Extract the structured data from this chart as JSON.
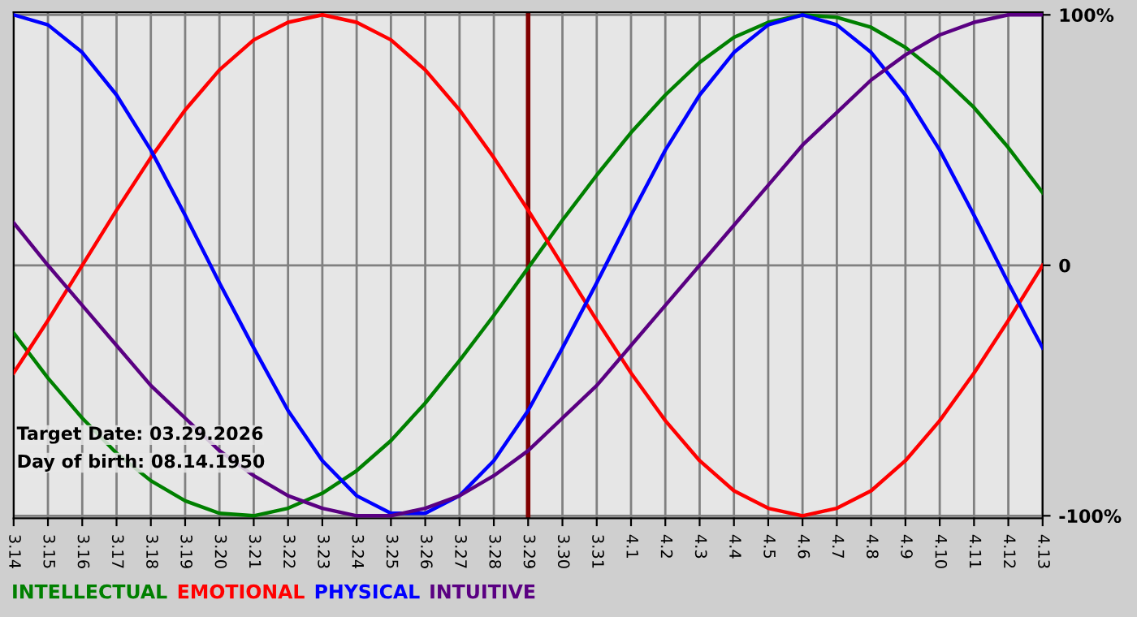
{
  "chart_data": {
    "type": "line",
    "categories": [
      "3.14",
      "3.15",
      "3.16",
      "3.17",
      "3.18",
      "3.19",
      "3.20",
      "3.21",
      "3.22",
      "3.23",
      "3.24",
      "3.25",
      "3.26",
      "3.27",
      "3.28",
      "3.29",
      "3.30",
      "3.31",
      "4.1",
      "4.2",
      "4.3",
      "4.4",
      "4.5",
      "4.6",
      "4.7",
      "4.8",
      "4.9",
      "4.10",
      "4.11",
      "4.12",
      "4.13"
    ],
    "series": [
      {
        "name": "INTELLECTUAL",
        "color": "#008000",
        "values": [
          -27,
          -45,
          -61,
          -75,
          -86,
          -94,
          -99,
          -100,
          -97,
          -91,
          -82,
          -70,
          -55,
          -38,
          -20,
          -1,
          18,
          36,
          53,
          68,
          81,
          91,
          97,
          100,
          99,
          95,
          87,
          76,
          63,
          47,
          29
        ]
      },
      {
        "name": "EMOTIONAL",
        "color": "#ff0000",
        "values": [
          -43,
          -22,
          0,
          22,
          43,
          62,
          78,
          90,
          97,
          100,
          97,
          90,
          78,
          62,
          43,
          22,
          0,
          -22,
          -43,
          -62,
          -78,
          -90,
          -97,
          -100,
          -97,
          -90,
          -78,
          -62,
          -43,
          -22,
          0
        ]
      },
      {
        "name": "PHYSICAL",
        "color": "#0000ff",
        "values": [
          100,
          96,
          85,
          68,
          46,
          20,
          -7,
          -33,
          -58,
          -78,
          -92,
          -99,
          -99,
          -92,
          -78,
          -58,
          -33,
          -7,
          20,
          46,
          68,
          85,
          96,
          100,
          96,
          85,
          68,
          46,
          20,
          -7,
          -33
        ]
      },
      {
        "name": "INTUITIVE",
        "color": "#5a0082",
        "values": [
          17,
          0,
          -16,
          -32,
          -48,
          -61,
          -74,
          -84,
          -92,
          -97,
          -100,
          -100,
          -97,
          -92,
          -84,
          -74,
          -61,
          -48,
          -32,
          -16,
          0,
          16,
          32,
          48,
          61,
          74,
          84,
          92,
          97,
          100,
          100
        ]
      }
    ],
    "ylim": [
      -101,
      101
    ],
    "yticks": [
      {
        "value": 100,
        "label": "100%"
      },
      0,
      {
        "value": -100,
        "label": "-100%"
      }
    ],
    "grid": true,
    "ref_lines": [
      {
        "axis": "x",
        "value": "3.29",
        "color": "#800000"
      }
    ],
    "annotations": [
      "Target Date: 03.29.2026",
      "Day of birth: 08.14.1950"
    ],
    "legend": "bottom"
  }
}
